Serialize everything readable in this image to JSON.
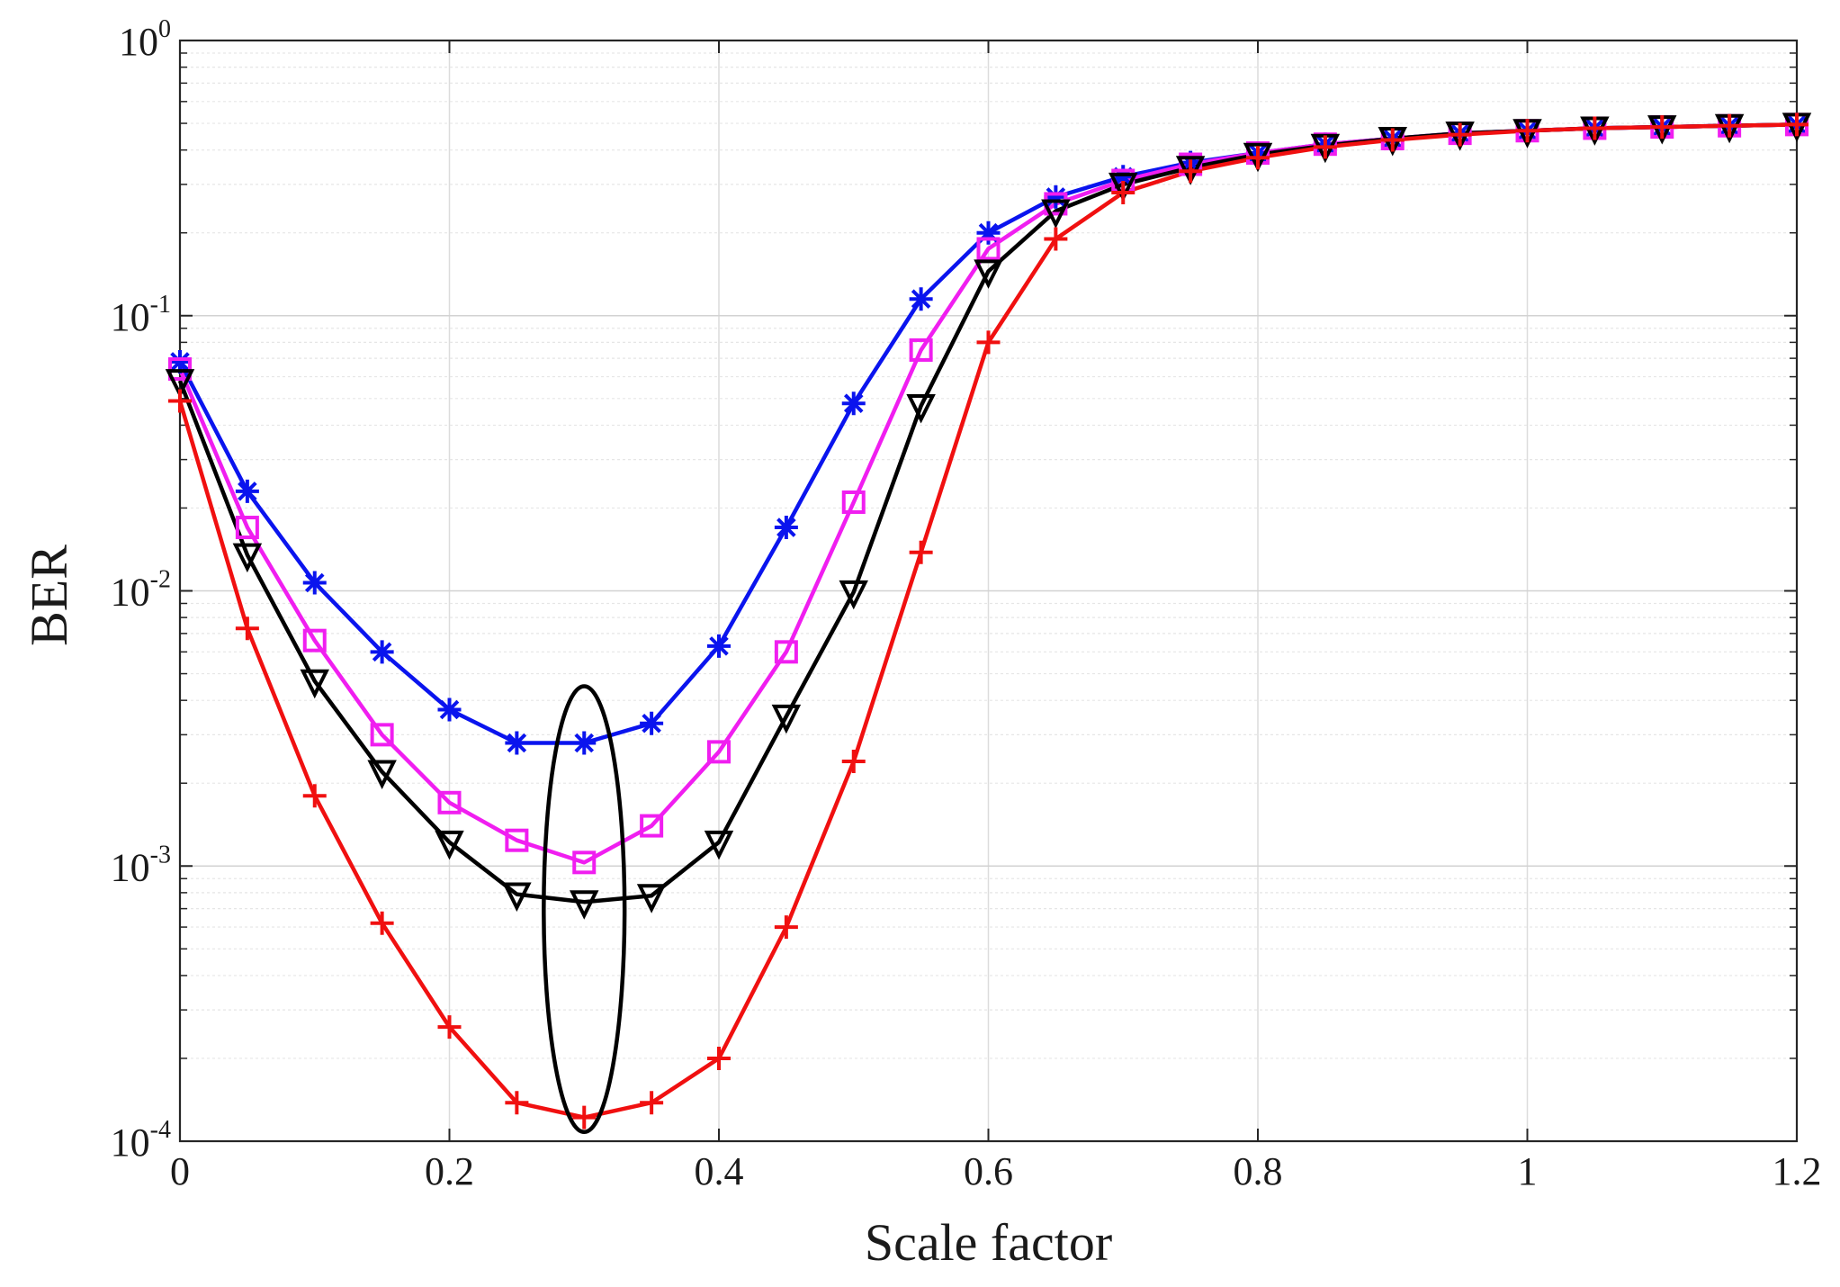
{
  "chart_data": {
    "type": "line",
    "title": "",
    "xlabel": "Scale factor",
    "ylabel": "BER",
    "yscale": "log",
    "xlim": [
      0,
      1.2
    ],
    "ylim": [
      0.0001,
      1
    ],
    "grid": true,
    "x_ticks": [
      "0",
      "0.2",
      "0.4",
      "0.6",
      "0.8",
      "1",
      "1.2"
    ],
    "y_ticks": [
      {
        "base": "10",
        "exp": "0"
      },
      {
        "base": "10",
        "exp": "-1"
      },
      {
        "base": "10",
        "exp": "-2"
      },
      {
        "base": "10",
        "exp": "-3"
      },
      {
        "base": "10",
        "exp": "-4"
      }
    ],
    "x": [
      0,
      0.05,
      0.1,
      0.15,
      0.2,
      0.25,
      0.3,
      0.35,
      0.4,
      0.45,
      0.5,
      0.55,
      0.6,
      0.65,
      0.7,
      0.75,
      0.8,
      0.85,
      0.9,
      0.95,
      1.0,
      1.05,
      1.1,
      1.15,
      1.2
    ],
    "series": [
      {
        "name": "blue-asterisk",
        "color": "#0a14ee",
        "marker": "asterisk",
        "values": [
          0.068,
          0.023,
          0.0107,
          0.006,
          0.0037,
          0.0028,
          0.0028,
          0.0033,
          0.0063,
          0.017,
          0.048,
          0.115,
          0.2,
          0.27,
          0.32,
          0.36,
          0.39,
          0.42,
          0.44,
          0.46,
          0.47,
          0.48,
          0.485,
          0.49,
          0.495
        ]
      },
      {
        "name": "magenta-square",
        "color": "#f01ef0",
        "marker": "square",
        "values": [
          0.064,
          0.017,
          0.0066,
          0.003,
          0.0017,
          0.00124,
          0.00103,
          0.0014,
          0.0026,
          0.006,
          0.021,
          0.075,
          0.175,
          0.255,
          0.31,
          0.355,
          0.39,
          0.42,
          0.44,
          0.46,
          0.47,
          0.48,
          0.485,
          0.49,
          0.495
        ]
      },
      {
        "name": "black-triangle",
        "color": "#000000",
        "marker": "triangle-down",
        "values": [
          0.058,
          0.0135,
          0.0047,
          0.0022,
          0.00122,
          0.00079,
          0.00074,
          0.00078,
          0.00122,
          0.0035,
          0.0099,
          0.047,
          0.145,
          0.24,
          0.3,
          0.345,
          0.385,
          0.415,
          0.44,
          0.46,
          0.47,
          0.48,
          0.485,
          0.49,
          0.495
        ]
      },
      {
        "name": "red-plus",
        "color": "#f01010",
        "marker": "plus",
        "values": [
          0.049,
          0.0073,
          0.0018,
          0.00062,
          0.00026,
          0.000138,
          0.000122,
          0.000138,
          0.0002,
          0.0006,
          0.0024,
          0.0138,
          0.08,
          0.19,
          0.28,
          0.335,
          0.375,
          0.41,
          0.435,
          0.455,
          0.47,
          0.48,
          0.485,
          0.49,
          0.495
        ]
      }
    ],
    "annotations": [
      {
        "type": "ellipse",
        "color": "#000000",
        "x_center": 0.3,
        "y_top": 0.0045,
        "y_bottom": 0.000108,
        "x_half_width": 0.03
      }
    ]
  }
}
